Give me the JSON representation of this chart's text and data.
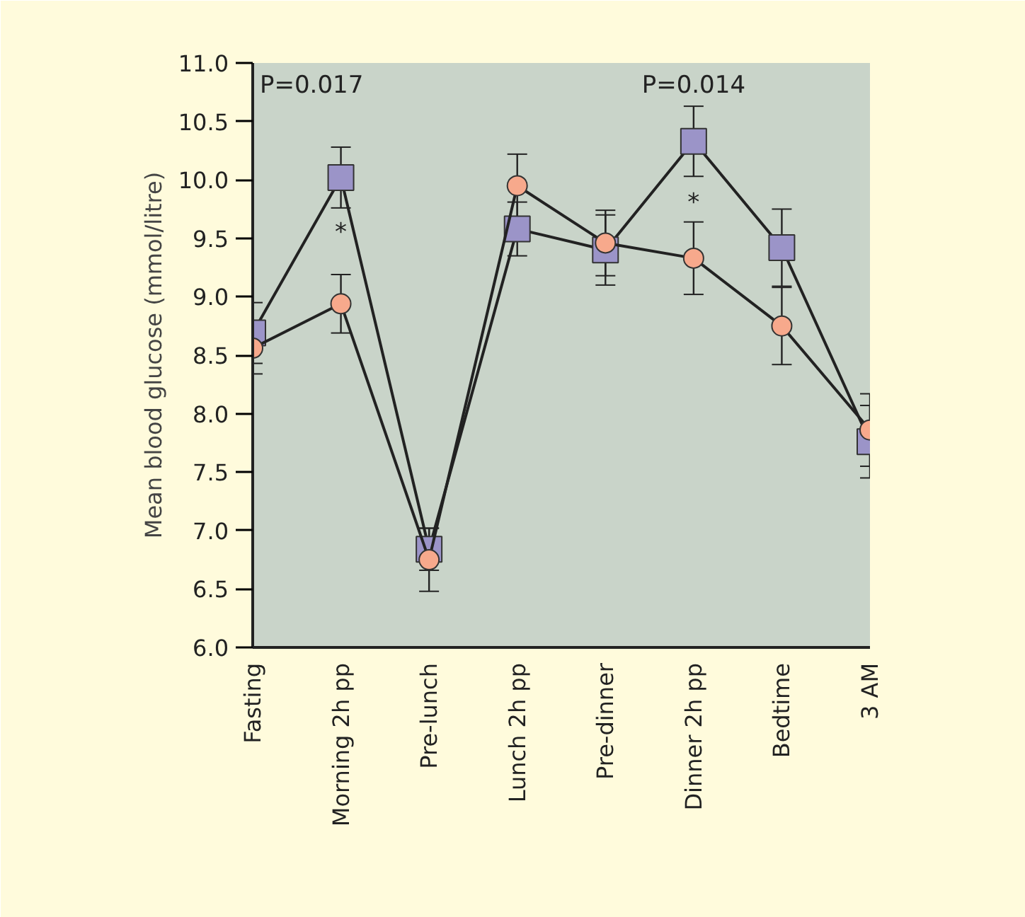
{
  "chart_data": {
    "type": "line",
    "ylabel": "Mean blood glucose (mmol/litre)",
    "categories": [
      "Fasting",
      "Morning 2h pp",
      "Pre-lunch",
      "Lunch 2h pp",
      "Pre-dinner",
      "Dinner 2h pp",
      "Bedtime",
      "3 AM"
    ],
    "ylim": [
      6.0,
      11.0
    ],
    "yticks": [
      {
        "value": 6.0,
        "label": "6.0"
      },
      {
        "value": 6.5,
        "label": "6.5"
      },
      {
        "value": 7.0,
        "label": "7.0"
      },
      {
        "value": 7.5,
        "label": "7.5"
      },
      {
        "value": 8.0,
        "label": "8.0"
      },
      {
        "value": 8.5,
        "label": "8.5"
      },
      {
        "value": 9.0,
        "label": "9.0"
      },
      {
        "value": 9.5,
        "label": "9.5"
      },
      {
        "value": 10.0,
        "label": "10.0"
      },
      {
        "value": 10.5,
        "label": "10.5"
      },
      {
        "value": 11.0,
        "label": "11.0"
      }
    ],
    "series": [
      {
        "color": "#9b94c8",
        "marker": "square",
        "values": [
          8.69,
          10.02,
          6.84,
          9.58,
          9.4,
          10.33,
          9.42,
          7.76
        ],
        "errors": [
          0.26,
          0.26,
          0.18,
          0.23,
          0.3,
          0.3,
          0.33,
          0.31
        ]
      },
      {
        "color": "#f7a98c",
        "marker": "circle",
        "values": [
          8.56,
          8.94,
          6.75,
          9.95,
          9.46,
          9.33,
          8.75,
          7.86
        ],
        "errors": [
          0.22,
          0.25,
          0.27,
          0.27,
          0.28,
          0.31,
          0.33,
          0.31
        ]
      }
    ],
    "annotations": [
      "P=0.017",
      "P=0.014",
      "*",
      "*"
    ],
    "grid": false
  }
}
